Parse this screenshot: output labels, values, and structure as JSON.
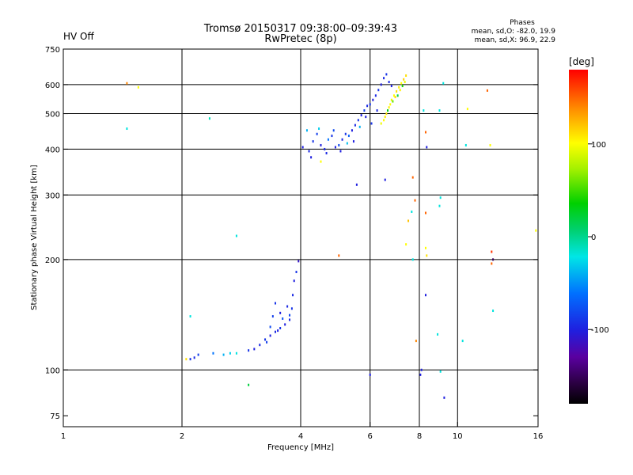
{
  "header": {
    "title_line1": "Tromsø 20150317 09:38:00–09:39:43",
    "title_line2": "RwPretec (8p)",
    "status": "HV Off",
    "status_color": "#cc0000"
  },
  "phase_summary": {
    "heading": "Phases",
    "line_o": "mean, sd,O: -82.0, 19.9",
    "line_x": "mean, sd,X:  96.9, 22.9"
  },
  "colorbar": {
    "label": "[deg]",
    "min": -180,
    "max": 180,
    "ticks": [
      {
        "value": 100,
        "label": "100"
      },
      {
        "value": 0,
        "label": "0"
      },
      {
        "value": -100,
        "label": "-100"
      }
    ]
  },
  "chart_data": {
    "type": "scatter",
    "xlabel": "Frequency [MHz]",
    "ylabel": "Stationary phase Virtual Height [km]",
    "x_scale": "log2",
    "y_scale": "log",
    "xlim": [
      1,
      16
    ],
    "ylim": [
      70,
      750
    ],
    "x_ticks": [
      1,
      2,
      4,
      6,
      8,
      10,
      16
    ],
    "x_tick_labels": [
      "1",
      "2",
      "4",
      "6",
      "8",
      "10",
      "16"
    ],
    "y_ticks": [
      75,
      100,
      200,
      300,
      400,
      500,
      600,
      750
    ],
    "y_tick_labels": [
      "75",
      "100",
      "200",
      "300",
      "400",
      "500",
      "600",
      "750"
    ],
    "vertical_gridlines": [
      2,
      4,
      6,
      8,
      10
    ],
    "horizontal_gridlines": [
      100,
      200,
      300,
      400,
      500,
      600
    ],
    "grid": true,
    "points": [
      [
        2.1,
        107,
        -90
      ],
      [
        2.15,
        108,
        -95
      ],
      [
        2.2,
        110,
        -85
      ],
      [
        2.4,
        111,
        -60
      ],
      [
        2.55,
        110,
        -40
      ],
      [
        2.65,
        111,
        -30
      ],
      [
        2.75,
        111,
        -20
      ],
      [
        2.95,
        113,
        -90
      ],
      [
        3.05,
        114,
        -100
      ],
      [
        3.15,
        117,
        -95
      ],
      [
        3.25,
        121,
        -90
      ],
      [
        3.35,
        124,
        -100
      ],
      [
        3.45,
        127,
        -95
      ],
      [
        3.55,
        130,
        -90
      ],
      [
        3.65,
        133,
        -100
      ],
      [
        3.75,
        137,
        -95
      ],
      [
        3.4,
        140,
        -85
      ],
      [
        3.45,
        152,
        -90
      ],
      [
        3.55,
        143,
        -100
      ],
      [
        3.7,
        149,
        -95
      ],
      [
        3.35,
        131,
        -80
      ],
      [
        3.8,
        147,
        -90
      ],
      [
        3.85,
        175,
        -100
      ],
      [
        3.9,
        185,
        -90
      ],
      [
        3.95,
        198,
        -110
      ],
      [
        3.6,
        138,
        -75
      ],
      [
        3.5,
        128,
        -100
      ],
      [
        3.28,
        119,
        -85
      ],
      [
        3.75,
        141,
        -80
      ],
      [
        3.82,
        160,
        -95
      ],
      [
        4.05,
        405,
        -100
      ],
      [
        4.2,
        395,
        -95
      ],
      [
        4.3,
        420,
        -90
      ],
      [
        4.4,
        440,
        -85
      ],
      [
        4.5,
        410,
        -100
      ],
      [
        4.6,
        400,
        -95
      ],
      [
        4.7,
        425,
        -60
      ],
      [
        4.8,
        435,
        -90
      ],
      [
        4.9,
        405,
        -100
      ],
      [
        5.0,
        410,
        -80
      ],
      [
        5.1,
        425,
        -95
      ],
      [
        5.2,
        440,
        -90
      ],
      [
        5.3,
        435,
        -70
      ],
      [
        5.4,
        450,
        -100
      ],
      [
        5.5,
        465,
        -95
      ],
      [
        5.6,
        480,
        -90
      ],
      [
        5.7,
        495,
        -100
      ],
      [
        5.8,
        510,
        -85
      ],
      [
        5.9,
        525,
        -95
      ],
      [
        6.0,
        530,
        -90
      ],
      [
        6.1,
        545,
        -100
      ],
      [
        6.2,
        560,
        -95
      ],
      [
        6.3,
        580,
        -90
      ],
      [
        6.4,
        600,
        -100
      ],
      [
        6.5,
        625,
        -95
      ],
      [
        6.6,
        640,
        -90
      ],
      [
        6.7,
        610,
        -95
      ],
      [
        6.8,
        595,
        -100
      ],
      [
        4.15,
        450,
        -40
      ],
      [
        4.25,
        380,
        -100
      ],
      [
        4.45,
        455,
        -30
      ],
      [
        4.65,
        390,
        -95
      ],
      [
        4.85,
        450,
        -80
      ],
      [
        5.05,
        395,
        -100
      ],
      [
        5.25,
        415,
        -35
      ],
      [
        5.45,
        420,
        -100
      ],
      [
        5.65,
        460,
        -40
      ],
      [
        5.85,
        490,
        -100
      ],
      [
        6.05,
        470,
        -90
      ],
      [
        6.25,
        510,
        -95
      ],
      [
        6.5,
        480,
        100
      ],
      [
        6.6,
        500,
        110
      ],
      [
        6.7,
        520,
        105
      ],
      [
        6.8,
        545,
        95
      ],
      [
        6.9,
        560,
        100
      ],
      [
        7.0,
        575,
        110
      ],
      [
        7.1,
        590,
        105
      ],
      [
        7.2,
        605,
        100
      ],
      [
        7.3,
        620,
        115
      ],
      [
        7.4,
        635,
        110
      ],
      [
        6.4,
        470,
        95
      ],
      [
        6.55,
        490,
        105
      ],
      [
        6.75,
        530,
        100
      ],
      [
        6.95,
        555,
        110
      ],
      [
        7.15,
        580,
        105
      ],
      [
        7.35,
        610,
        95
      ],
      [
        7.05,
        560,
        20
      ],
      [
        6.65,
        510,
        30
      ],
      [
        7.25,
        595,
        40
      ],
      [
        6.85,
        540,
        60
      ],
      [
        1.45,
        605,
        140
      ],
      [
        1.55,
        590,
        100
      ],
      [
        1.45,
        455,
        -20
      ],
      [
        2.35,
        485,
        -10
      ],
      [
        2.75,
        232,
        -20
      ],
      [
        2.1,
        140,
        -20
      ],
      [
        2.05,
        107,
        110
      ],
      [
        2.95,
        91,
        20
      ],
      [
        5.55,
        320,
        -100
      ],
      [
        6.55,
        330,
        -100
      ],
      [
        6.0,
        97,
        -100
      ],
      [
        8.05,
        97,
        -100
      ],
      [
        8.1,
        100,
        -100
      ],
      [
        8.3,
        160,
        -100
      ],
      [
        8.35,
        405,
        -100
      ],
      [
        8.2,
        510,
        -20
      ],
      [
        8.3,
        445,
        150
      ],
      [
        7.65,
        270,
        -20
      ],
      [
        7.8,
        290,
        150
      ],
      [
        7.85,
        120,
        140
      ],
      [
        8.3,
        215,
        100
      ],
      [
        8.35,
        205,
        110
      ],
      [
        8.3,
        268,
        150
      ],
      [
        9.0,
        280,
        -20
      ],
      [
        9.05,
        295,
        -20
      ],
      [
        9.2,
        605,
        -20
      ],
      [
        9.0,
        510,
        -20
      ],
      [
        8.9,
        125,
        -20
      ],
      [
        9.05,
        99,
        -20
      ],
      [
        9.25,
        84,
        -100
      ],
      [
        10.5,
        410,
        -20
      ],
      [
        10.6,
        515,
        100
      ],
      [
        10.3,
        120,
        -20
      ],
      [
        11.9,
        578,
        150
      ],
      [
        12.1,
        410,
        100
      ],
      [
        12.2,
        210,
        165
      ],
      [
        12.2,
        195,
        150
      ],
      [
        12.3,
        200,
        -150
      ],
      [
        12.3,
        145,
        -20
      ],
      [
        15.8,
        240,
        100
      ],
      [
        7.7,
        200,
        -20
      ],
      [
        7.4,
        220,
        100
      ],
      [
        7.5,
        255,
        120
      ],
      [
        7.7,
        335,
        150
      ],
      [
        5.0,
        205,
        150
      ],
      [
        4.5,
        370,
        100
      ]
    ]
  }
}
